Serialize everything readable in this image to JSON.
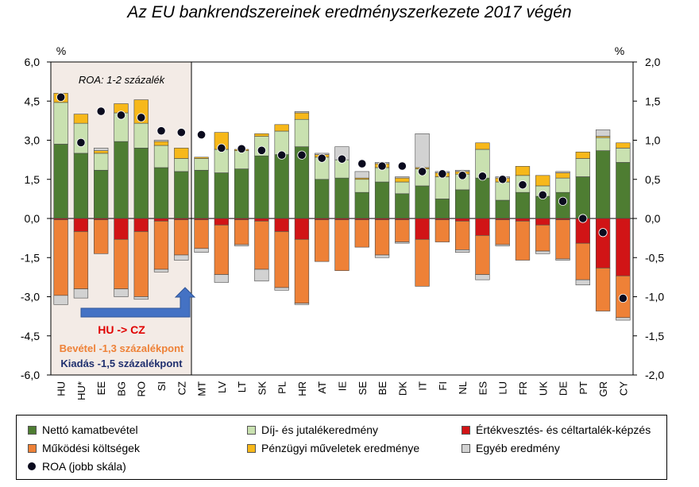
{
  "title": "Az EU bankrendszereinek eredményszerkezete 2017 végén",
  "colors": {
    "net_interest": "#4e7d32",
    "fee": "#c9e1b0",
    "impairment": "#d11416",
    "operating_cost": "#ee8137",
    "trading": "#f7b81a",
    "other": "#d2d2d2",
    "roa": "#0b0b1e",
    "box_fill": "#f3ebe6",
    "arrow": "#4472c4"
  },
  "chart_data": {
    "type": "bar",
    "stacked": true,
    "left_axis": {
      "unit": "%",
      "min": -6.0,
      "max": 6.0,
      "ticks": [
        "6,0",
        "4,5",
        "3,0",
        "1,5",
        "0,0",
        "-1,5",
        "-3,0",
        "-4,5",
        "-6,0"
      ]
    },
    "right_axis": {
      "unit": "%",
      "min": -2.0,
      "max": 2.0,
      "ticks": [
        "2,0",
        "1,5",
        "1,0",
        "0,5",
        "0,0",
        "-0,5",
        "-1,0",
        "-1,5",
        "-2,0"
      ]
    },
    "categories": [
      "HU",
      "HU*",
      "EE",
      "BG",
      "RO",
      "SI",
      "CZ",
      "MT",
      "LV",
      "LT",
      "SK",
      "PL",
      "HR",
      "AT",
      "IE",
      "SE",
      "BE",
      "DK",
      "IT",
      "FI",
      "NL",
      "ES",
      "LU",
      "FR",
      "UK",
      "DE",
      "PT",
      "GR",
      "CY"
    ],
    "series": [
      {
        "key": "net_interest",
        "name": "Nettó kamatbevétel",
        "sign": "positive",
        "values": [
          2.85,
          2.5,
          1.85,
          2.95,
          2.7,
          1.95,
          1.8,
          1.85,
          1.75,
          1.9,
          2.4,
          2.45,
          2.75,
          1.5,
          1.55,
          1.0,
          1.4,
          0.95,
          1.25,
          0.75,
          1.1,
          1.55,
          0.7,
          1.0,
          0.85,
          1.0,
          1.6,
          2.6,
          2.15
        ]
      },
      {
        "key": "fee",
        "name": "Díj- és jutalékeredmény",
        "sign": "positive",
        "values": [
          1.6,
          1.15,
          0.65,
          1.1,
          0.95,
          0.85,
          0.5,
          0.45,
          0.9,
          0.7,
          0.75,
          0.9,
          1.05,
          0.85,
          0.7,
          0.5,
          0.55,
          0.45,
          0.65,
          0.85,
          0.6,
          1.1,
          0.7,
          0.65,
          0.4,
          0.55,
          0.7,
          0.5,
          0.55
        ]
      },
      {
        "key": "trading",
        "name": "Pénzügyi műveletek eredménye",
        "sign": "positive",
        "values": [
          0.35,
          0.35,
          0.1,
          0.35,
          0.9,
          0.15,
          0.4,
          0.05,
          0.65,
          0.05,
          0.1,
          0.25,
          0.25,
          0.1,
          0.0,
          0.05,
          0.15,
          0.15,
          0.05,
          0.15,
          0.1,
          0.25,
          0.15,
          0.35,
          0.4,
          0.2,
          0.25,
          0.05,
          0.2
        ]
      },
      {
        "key": "other",
        "name": "Egyéb eredmény",
        "sign": "positive",
        "values": [
          0.0,
          0.0,
          0.1,
          0.0,
          0.0,
          0.05,
          0.0,
          0.0,
          0.0,
          0.0,
          0.0,
          0.0,
          0.05,
          0.05,
          0.5,
          0.25,
          0.05,
          0.05,
          1.3,
          0.05,
          0.05,
          0.0,
          0.05,
          0.0,
          0.0,
          0.05,
          0.0,
          0.25,
          0.0
        ]
      },
      {
        "key": "impairment",
        "name": "Értékvesztés- és céltartalék-képzés",
        "sign": "negative",
        "values": [
          -0.05,
          -0.5,
          -0.05,
          -0.8,
          -0.5,
          -0.1,
          -0.05,
          -0.05,
          -0.25,
          -0.05,
          -0.1,
          -0.5,
          -0.8,
          -0.05,
          -0.05,
          -0.05,
          -0.05,
          -0.05,
          -0.8,
          -0.05,
          -0.1,
          -0.65,
          -0.05,
          -0.1,
          -0.25,
          -0.05,
          -0.95,
          -1.9,
          -2.2
        ]
      },
      {
        "key": "operating_cost",
        "name": "Működési költségek",
        "sign": "negative",
        "values": [
          -2.9,
          -2.2,
          -1.3,
          -1.9,
          -2.5,
          -1.85,
          -1.35,
          -1.1,
          -1.9,
          -0.95,
          -1.85,
          -2.15,
          -2.45,
          -1.6,
          -1.95,
          -1.05,
          -1.35,
          -0.85,
          -1.8,
          -0.85,
          -1.1,
          -1.5,
          -0.95,
          -1.5,
          -1.0,
          -1.5,
          -1.4,
          -1.65,
          -1.6
        ]
      },
      {
        "key": "other_neg",
        "name": "Egyéb eredmény",
        "sign": "negative",
        "values": [
          -0.35,
          -0.35,
          0.0,
          -0.3,
          -0.1,
          -0.1,
          -0.2,
          -0.15,
          -0.3,
          -0.05,
          -0.45,
          -0.1,
          -0.05,
          0.0,
          0.0,
          0.0,
          -0.1,
          -0.05,
          0.0,
          0.0,
          -0.1,
          -0.2,
          -0.05,
          0.0,
          -0.1,
          -0.05,
          -0.2,
          0.0,
          -0.1
        ]
      }
    ],
    "roa": {
      "name": "ROA (jobb skála)",
      "axis": "right",
      "values": [
        1.55,
        0.97,
        1.37,
        1.32,
        1.29,
        1.12,
        1.1,
        1.07,
        0.9,
        0.89,
        0.87,
        0.81,
        0.81,
        0.77,
        0.76,
        0.7,
        0.67,
        0.67,
        0.6,
        0.57,
        0.55,
        0.54,
        0.5,
        0.43,
        0.3,
        0.22,
        0.0,
        -0.18,
        -1.02
      ]
    },
    "annotations": {
      "left_unit": "%",
      "right_unit": "%",
      "roa_box": "ROA: 1-2 százalék",
      "change": "HU -> CZ",
      "revenue": "Bevétel -1,3 százalékpont",
      "expense": "Kiadás -1,5 százalékpont"
    }
  },
  "legend": [
    {
      "key": "net_interest",
      "label": "Nettó kamatbevétel"
    },
    {
      "key": "fee",
      "label": "Díj- és jutalékeredmény"
    },
    {
      "key": "impairment",
      "label": "Értékvesztés- és céltartalék-képzés"
    },
    {
      "key": "operating_cost",
      "label": "Működési költségek"
    },
    {
      "key": "trading",
      "label": "Pénzügyi műveletek eredménye"
    },
    {
      "key": "other",
      "label": "Egyéb eredmény"
    },
    {
      "key": "roa",
      "label": "ROA (jobb skála)"
    }
  ]
}
